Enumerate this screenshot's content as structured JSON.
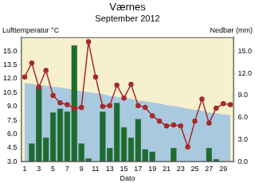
{
  "chart_data": {
    "type": "bar",
    "title": "Værnes",
    "subtitle": "September 2012",
    "x_label": "Dato",
    "y_label": "Lufttemperatur °C",
    "y2_label": "Nedbør (mm)",
    "categories": [
      "1",
      null,
      "3",
      null,
      "5",
      null,
      "7",
      null,
      "9",
      null,
      "11",
      null,
      "13",
      null,
      "15",
      null,
      "17",
      null,
      "19",
      null,
      "21",
      null,
      "23",
      null,
      "25",
      null,
      "27",
      null,
      "29",
      null
    ],
    "series": [
      {
        "type": "area",
        "color": "#a9c9df",
        "values": [
          11.5,
          11.4,
          11.3,
          11.2,
          11.1,
          11.0,
          10.9,
          10.7,
          10.6,
          10.5,
          10.4,
          10.3,
          10.1,
          10.0,
          9.9,
          9.8,
          9.6,
          9.5,
          9.4,
          9.3,
          9.1,
          9.0,
          8.9,
          8.7,
          8.6,
          8.5,
          8.3,
          8.2,
          8.1,
          8.0
        ]
      },
      {
        "type": "bar",
        "color": "#1e6b2e",
        "axis": "y2",
        "values": [
          0,
          2.5,
          10.1,
          3.3,
          6.7,
          7.2,
          6.8,
          15.8,
          2.5,
          0.5,
          0,
          6.8,
          1.9,
          8.0,
          4.7,
          3.3,
          5.8,
          1.7,
          1.4,
          0,
          0,
          1.9,
          0,
          0,
          0,
          0,
          1.9,
          0.4,
          0,
          0
        ]
      },
      {
        "type": "line",
        "color": "#a52a2a",
        "marker": "circle",
        "values": [
          12.2,
          13.7,
          11.1,
          12.9,
          10.2,
          9.4,
          9.2,
          8.8,
          8.9,
          16.0,
          12.2,
          9.0,
          9.1,
          11.3,
          9.9,
          11.4,
          9.1,
          8.9,
          8.0,
          7.4,
          6.9,
          7.0,
          6.9,
          4.6,
          7.4,
          9.8,
          7.2,
          8.8,
          9.3,
          9.2
        ]
      }
    ],
    "ylim": [
      3,
      16.5
    ],
    "yticks": [
      {
        "value": 3,
        "label": "3.0"
      },
      4.5,
      {
        "value": 6,
        "label": "6.0"
      },
      7.5,
      {
        "value": 9,
        "label": "9.0"
      },
      10.5,
      {
        "value": 12,
        "label": "12.0"
      },
      13.5,
      {
        "value": 15,
        "label": "15.0"
      }
    ],
    "y2lim": [
      0,
      16.875
    ],
    "y2ticks": [
      {
        "value": 0,
        "label": "0.0"
      },
      {
        "value": 3,
        "label": "3.0"
      },
      {
        "value": 6,
        "label": "6.0"
      },
      {
        "value": 9,
        "label": "9.0"
      },
      {
        "value": 12,
        "label": "12.0"
      },
      {
        "value": 15,
        "label": "15.0"
      }
    ],
    "grid": false
  }
}
